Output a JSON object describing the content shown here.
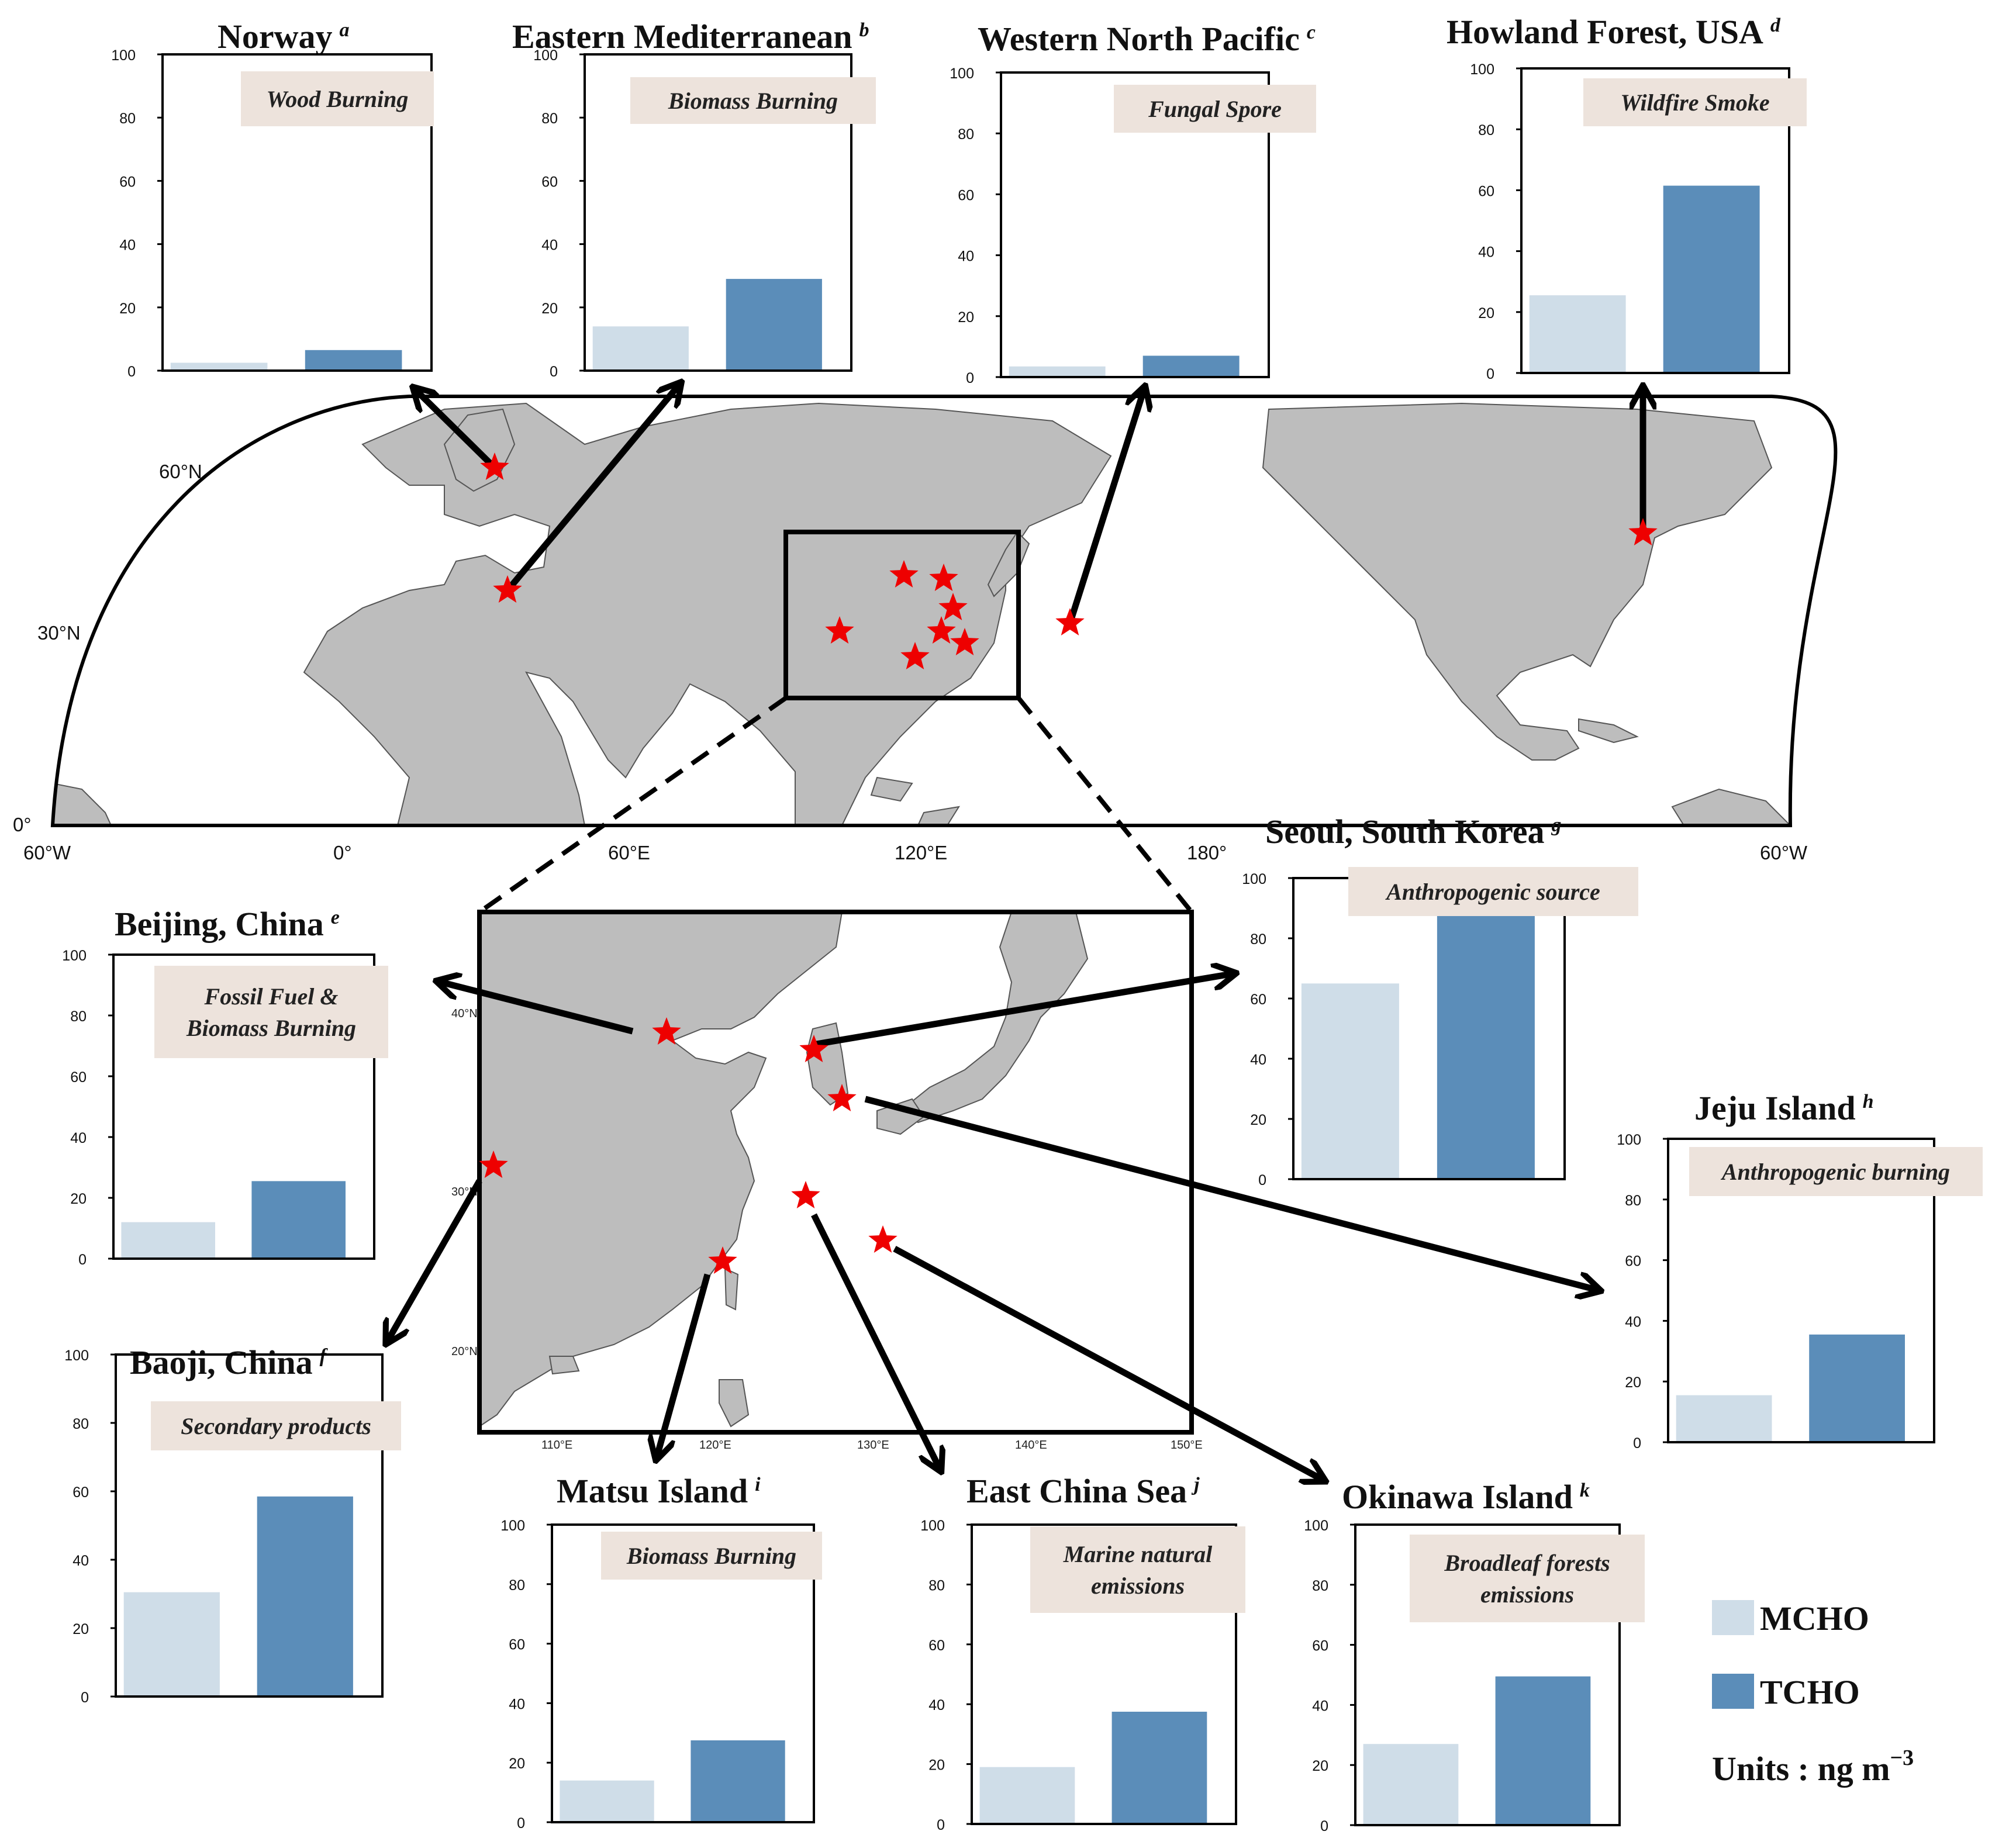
{
  "colors": {
    "mcho": "#cfdde8",
    "tcho": "#5b8db9",
    "land": "#bdbdbd",
    "star": "#ee0000",
    "tag_bg": "#ede3dc"
  },
  "map": {
    "lat_labels": [
      "60°N",
      "30°N",
      "0°"
    ],
    "lon_labels": [
      "60°W",
      "0°",
      "60°E",
      "120°E",
      "180°",
      "60°W"
    ]
  },
  "inset": {
    "lat_labels": [
      "40°N",
      "30°N",
      "20°N"
    ],
    "lon_labels": [
      "110°E",
      "120°E",
      "130°E",
      "140°E",
      "150°E"
    ]
  },
  "legend": {
    "mcho": "MCHO",
    "tcho": "TCHO",
    "units": "Units : ng m",
    "units_sup": "−3"
  },
  "chart_data": [
    {
      "type": "bar",
      "title": "Norway",
      "letter": "a",
      "tag": [
        "Wood Burning"
      ],
      "categories": [
        "MCHO",
        "TCHO"
      ],
      "values": [
        2.5,
        6.5
      ],
      "ylim": [
        0,
        100
      ],
      "yticks": [
        "0",
        "20",
        "40",
        "60",
        "80",
        "100"
      ]
    },
    {
      "type": "bar",
      "title": "Eastern Mediterranean",
      "letter": "b",
      "tag": [
        "Biomass Burning"
      ],
      "categories": [
        "MCHO",
        "TCHO"
      ],
      "values": [
        14,
        29
      ],
      "ylim": [
        0,
        100
      ],
      "yticks": [
        "0",
        "20",
        "40",
        "60",
        "80",
        "100"
      ]
    },
    {
      "type": "bar",
      "title": "Western North Pacific",
      "letter": "c",
      "tag": [
        "Fungal Spore"
      ],
      "categories": [
        "MCHO",
        "TCHO"
      ],
      "values": [
        3.5,
        7
      ],
      "ylim": [
        0,
        100
      ],
      "yticks": [
        "0",
        "20",
        "40",
        "60",
        "80",
        "100"
      ]
    },
    {
      "type": "bar",
      "title": "Howland Forest, USA",
      "letter": "d",
      "tag": [
        "Wildfire Smoke"
      ],
      "categories": [
        "MCHO",
        "TCHO"
      ],
      "values": [
        25.5,
        61.5
      ],
      "ylim": [
        0,
        100
      ],
      "yticks": [
        "0",
        "20",
        "40",
        "60",
        "80",
        "100"
      ]
    },
    {
      "type": "bar",
      "title": "Beijing, China",
      "letter": "e",
      "tag": [
        "Fossil Fuel &",
        "Biomass Burning"
      ],
      "categories": [
        "MCHO",
        "TCHO"
      ],
      "values": [
        12,
        25.5
      ],
      "ylim": [
        0,
        100
      ],
      "yticks": [
        "0",
        "20",
        "40",
        "60",
        "80",
        "100"
      ]
    },
    {
      "type": "bar",
      "title": "Baoji, China",
      "letter": "f",
      "tag": [
        "Secondary products"
      ],
      "categories": [
        "MCHO",
        "TCHO"
      ],
      "values": [
        30.5,
        58.5
      ],
      "ylim": [
        0,
        100
      ],
      "yticks": [
        "0",
        "20",
        "40",
        "60",
        "80",
        "100"
      ]
    },
    {
      "type": "bar",
      "title": "Seoul, South Korea",
      "letter": "g",
      "tag": [
        "Anthropogenic source"
      ],
      "categories": [
        "MCHO",
        "TCHO"
      ],
      "values": [
        65,
        88
      ],
      "ylim": [
        0,
        100
      ],
      "yticks": [
        "0",
        "20",
        "40",
        "60",
        "80",
        "100"
      ]
    },
    {
      "type": "bar",
      "title": "Jeju Island",
      "letter": "h",
      "tag": [
        "Anthropogenic burning"
      ],
      "categories": [
        "MCHO",
        "TCHO"
      ],
      "values": [
        15.5,
        35.5
      ],
      "ylim": [
        0,
        100
      ],
      "yticks": [
        "0",
        "20",
        "40",
        "60",
        "80",
        "100"
      ]
    },
    {
      "type": "bar",
      "title": "Matsu Island",
      "letter": "i",
      "tag": [
        "Biomass Burning"
      ],
      "categories": [
        "MCHO",
        "TCHO"
      ],
      "values": [
        14,
        27.5
      ],
      "ylim": [
        0,
        100
      ],
      "yticks": [
        "0",
        "20",
        "40",
        "60",
        "80",
        "100"
      ]
    },
    {
      "type": "bar",
      "title": "East China Sea",
      "letter": "j",
      "tag": [
        "Marine natural",
        "emissions"
      ],
      "categories": [
        "MCHO",
        "TCHO"
      ],
      "values": [
        19,
        37.5
      ],
      "ylim": [
        0,
        100
      ],
      "yticks": [
        "0",
        "20",
        "40",
        "60",
        "80",
        "100"
      ]
    },
    {
      "type": "bar",
      "title": "Okinawa Island",
      "letter": "k",
      "tag": [
        "Broadleaf forests",
        "emissions"
      ],
      "categories": [
        "MCHO",
        "TCHO"
      ],
      "values": [
        27,
        49.5
      ],
      "ylim": [
        0,
        100
      ],
      "yticks": [
        "0",
        "20",
        "40",
        "60",
        "80",
        "100"
      ]
    }
  ]
}
